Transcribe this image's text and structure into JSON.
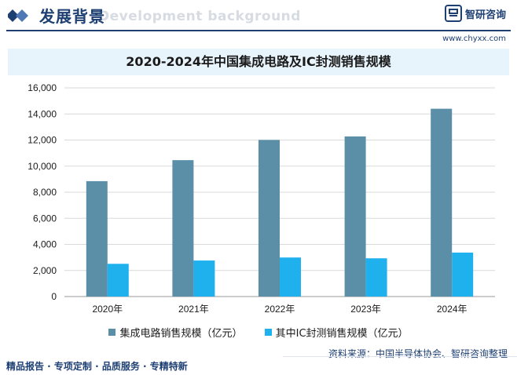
{
  "header": {
    "title": "发展背景",
    "watermark": "Development background",
    "brand_name": "智研咨询",
    "brand_url": "www.chyxx.com"
  },
  "chart_data": {
    "type": "bar",
    "title": "2020-2024年中国集成电路及IC封测销售规模",
    "categories": [
      "2020年",
      "2021年",
      "2022年",
      "2023年",
      "2024年"
    ],
    "series": [
      {
        "name": "集成电路销售规模（亿元）",
        "values": [
          8848,
          10458,
          12006,
          12277,
          14400
        ],
        "color": "#5b8fa8"
      },
      {
        "name": "其中IC封测销售规模（亿元）",
        "values": [
          2510,
          2763,
          2995,
          2933,
          3370
        ],
        "color": "#1fb0ee"
      }
    ],
    "ylim": [
      0,
      16000
    ],
    "yticks": [
      0,
      2000,
      4000,
      6000,
      8000,
      10000,
      12000,
      14000,
      16000
    ],
    "ytick_labels": [
      "0",
      "2,000",
      "4,000",
      "6,000",
      "8,000",
      "10,000",
      "12,000",
      "14,000",
      "16,000"
    ],
    "grid": true,
    "xlabel": "",
    "ylabel": ""
  },
  "source": "资料来源：中国半导体协会、智研咨询整理",
  "footer": "精品报告 · 专项定制 · 品质服务 · 专精特新"
}
